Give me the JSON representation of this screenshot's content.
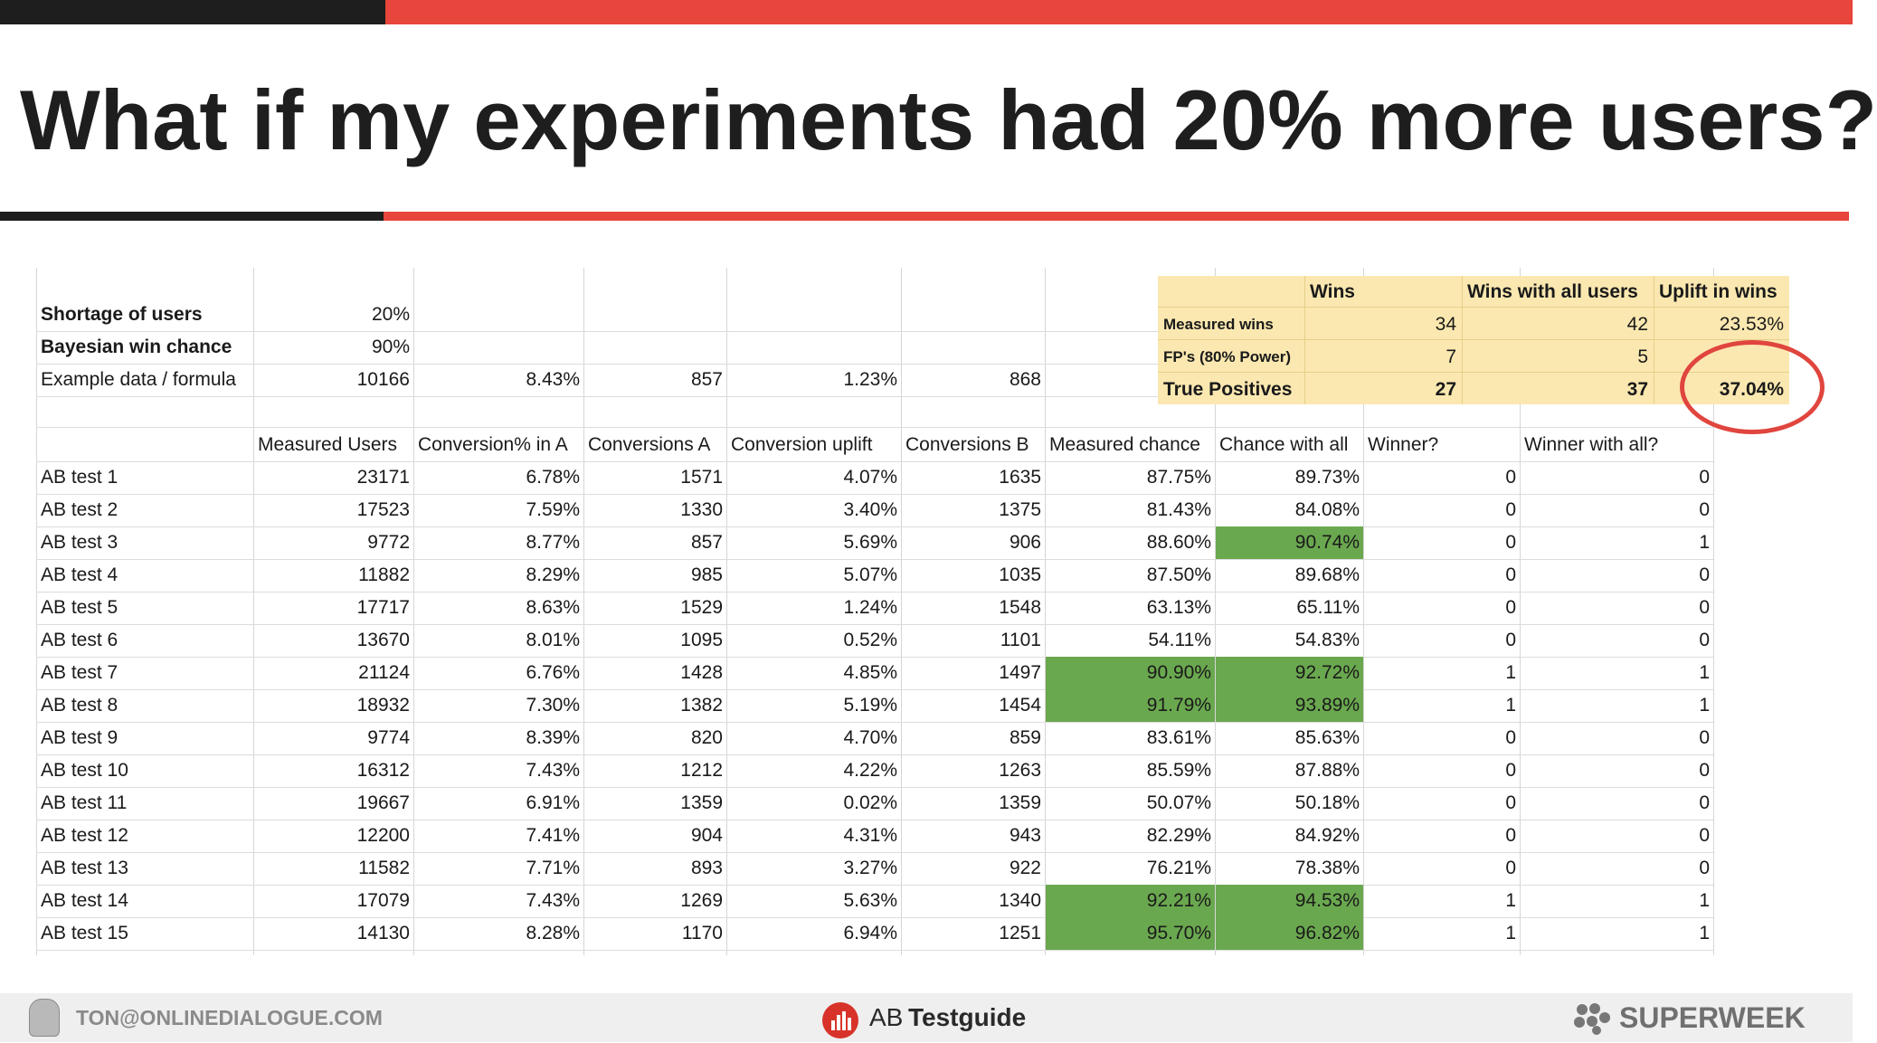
{
  "colors": {
    "accent_red": "#e8453c",
    "dark_bar": "#1e1e1e",
    "highlight_green": "#6aa84f",
    "summary_bg": "#fbe8b0",
    "circle_red": "#e0453e"
  },
  "title": "What if my experiments had 20% more users?",
  "params": [
    {
      "label": "Shortage of users",
      "bold": true,
      "value": "20%"
    },
    {
      "label": "Bayesian win chance",
      "bold": true,
      "value": "90%"
    },
    {
      "label": "Example data / formula",
      "bold": false,
      "value": "10166",
      "conv_a": "8.43%",
      "conversions_a": "857",
      "uplift": "1.23%",
      "conversions_b": "868"
    }
  ],
  "summary": {
    "headers": [
      "",
      "Wins",
      "Wins with all users",
      "Uplift in wins"
    ],
    "rows": [
      {
        "label": "Measured wins",
        "wins": "34",
        "wins_all": "42",
        "uplift": "23.53%"
      },
      {
        "label": "FP's (80% Power)",
        "wins": "7",
        "wins_all": "5",
        "uplift": ""
      },
      {
        "label": "True Positives",
        "wins": "27",
        "wins_all": "37",
        "uplift": "37.04%"
      }
    ]
  },
  "table": {
    "headers": [
      "",
      "Measured Users",
      "Conversion% in A",
      "Conversions A",
      "Conversion uplift",
      "Conversions B",
      "Measured chance",
      "Chance with all",
      "Winner?",
      "Winner with all?"
    ],
    "rows": [
      [
        "AB test 1",
        "23171",
        "6.78%",
        "1571",
        "4.07%",
        "1635",
        "87.75%",
        "89.73%",
        "0",
        "0"
      ],
      [
        "AB test 2",
        "17523",
        "7.59%",
        "1330",
        "3.40%",
        "1375",
        "81.43%",
        "84.08%",
        "0",
        "0"
      ],
      [
        "AB test 3",
        "9772",
        "8.77%",
        "857",
        "5.69%",
        "906",
        "88.60%",
        "90.74%",
        "0",
        "1"
      ],
      [
        "AB test 4",
        "11882",
        "8.29%",
        "985",
        "5.07%",
        "1035",
        "87.50%",
        "89.68%",
        "0",
        "0"
      ],
      [
        "AB test 5",
        "17717",
        "8.63%",
        "1529",
        "1.24%",
        "1548",
        "63.13%",
        "65.11%",
        "0",
        "0"
      ],
      [
        "AB test 6",
        "13670",
        "8.01%",
        "1095",
        "0.52%",
        "1101",
        "54.11%",
        "54.83%",
        "0",
        "0"
      ],
      [
        "AB test 7",
        "21124",
        "6.76%",
        "1428",
        "4.85%",
        "1497",
        "90.90%",
        "92.72%",
        "1",
        "1"
      ],
      [
        "AB test 8",
        "18932",
        "7.30%",
        "1382",
        "5.19%",
        "1454",
        "91.79%",
        "93.89%",
        "1",
        "1"
      ],
      [
        "AB test 9",
        "9774",
        "8.39%",
        "820",
        "4.70%",
        "859",
        "83.61%",
        "85.63%",
        "0",
        "0"
      ],
      [
        "AB test 10",
        "16312",
        "7.43%",
        "1212",
        "4.22%",
        "1263",
        "85.59%",
        "87.88%",
        "0",
        "0"
      ],
      [
        "AB test 11",
        "19667",
        "6.91%",
        "1359",
        "0.02%",
        "1359",
        "50.07%",
        "50.18%",
        "0",
        "0"
      ],
      [
        "AB test 12",
        "12200",
        "7.41%",
        "904",
        "4.31%",
        "943",
        "82.29%",
        "84.92%",
        "0",
        "0"
      ],
      [
        "AB test 13",
        "11582",
        "7.71%",
        "893",
        "3.27%",
        "922",
        "76.21%",
        "78.38%",
        "0",
        "0"
      ],
      [
        "AB test 14",
        "17079",
        "7.43%",
        "1269",
        "5.63%",
        "1340",
        "92.21%",
        "94.53%",
        "1",
        "1"
      ],
      [
        "AB test 15",
        "14130",
        "8.28%",
        "1170",
        "6.94%",
        "1251",
        "95.70%",
        "96.82%",
        "1",
        "1"
      ]
    ]
  },
  "footer": {
    "email": "TON@ONLINEDIALOGUE.COM",
    "center_brand_prefix": "AB",
    "center_brand_name": "Testguide",
    "right_brand": "SUPERWEEK"
  }
}
